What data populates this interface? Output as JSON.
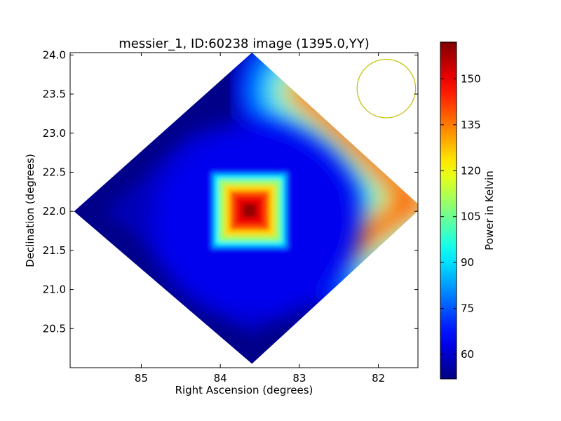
{
  "chart_data": {
    "type": "heatmap",
    "title": "messier_1, ID:60238 image (1395.0,YY)",
    "xlabel": "Right Ascension (degrees)",
    "ylabel": "Declination (degrees)",
    "xlim": [
      85.9,
      81.5
    ],
    "ylim": [
      20.0,
      24.03
    ],
    "x_inverted": true,
    "xticks": [
      85,
      84,
      83,
      82
    ],
    "yticks": [
      20.5,
      21.0,
      21.5,
      22.0,
      22.5,
      23.0,
      23.5,
      24.0
    ],
    "xtick_labels": [
      "85",
      "84",
      "83",
      "82"
    ],
    "ytick_labels": [
      "20.5",
      "21.0",
      "21.5",
      "22.0",
      "22.5",
      "23.0",
      "23.5",
      "24.0"
    ],
    "colormap": "jet",
    "colorbar": {
      "label": "Power in Kelvin",
      "range": [
        52,
        162
      ],
      "ticks": [
        60,
        75,
        90,
        105,
        120,
        135,
        150
      ],
      "tick_labels": [
        "60",
        "75",
        "90",
        "105",
        "120",
        "135",
        "150"
      ]
    },
    "footprint_corners": [
      {
        "ra": 83.6,
        "dec": 24.03
      },
      {
        "ra": 81.45,
        "dec": 22.05
      },
      {
        "ra": 83.6,
        "dec": 20.05
      },
      {
        "ra": 85.85,
        "dec": 22.0
      }
    ],
    "base_value": 58,
    "features": [
      {
        "name": "central source",
        "ra": 83.63,
        "dec": 22.01,
        "peak": 160,
        "halo_peak": 64
      },
      {
        "name": "galactic ridge",
        "ra": 81.55,
        "dec": 22.1,
        "peak": 148
      },
      {
        "name": "cold region north",
        "ra": 83.6,
        "dec": 23.7,
        "value": 53
      }
    ],
    "beam": {
      "ra": 81.9,
      "dec": 23.57,
      "radius_deg": 0.37,
      "color": "#bfbf00"
    }
  }
}
